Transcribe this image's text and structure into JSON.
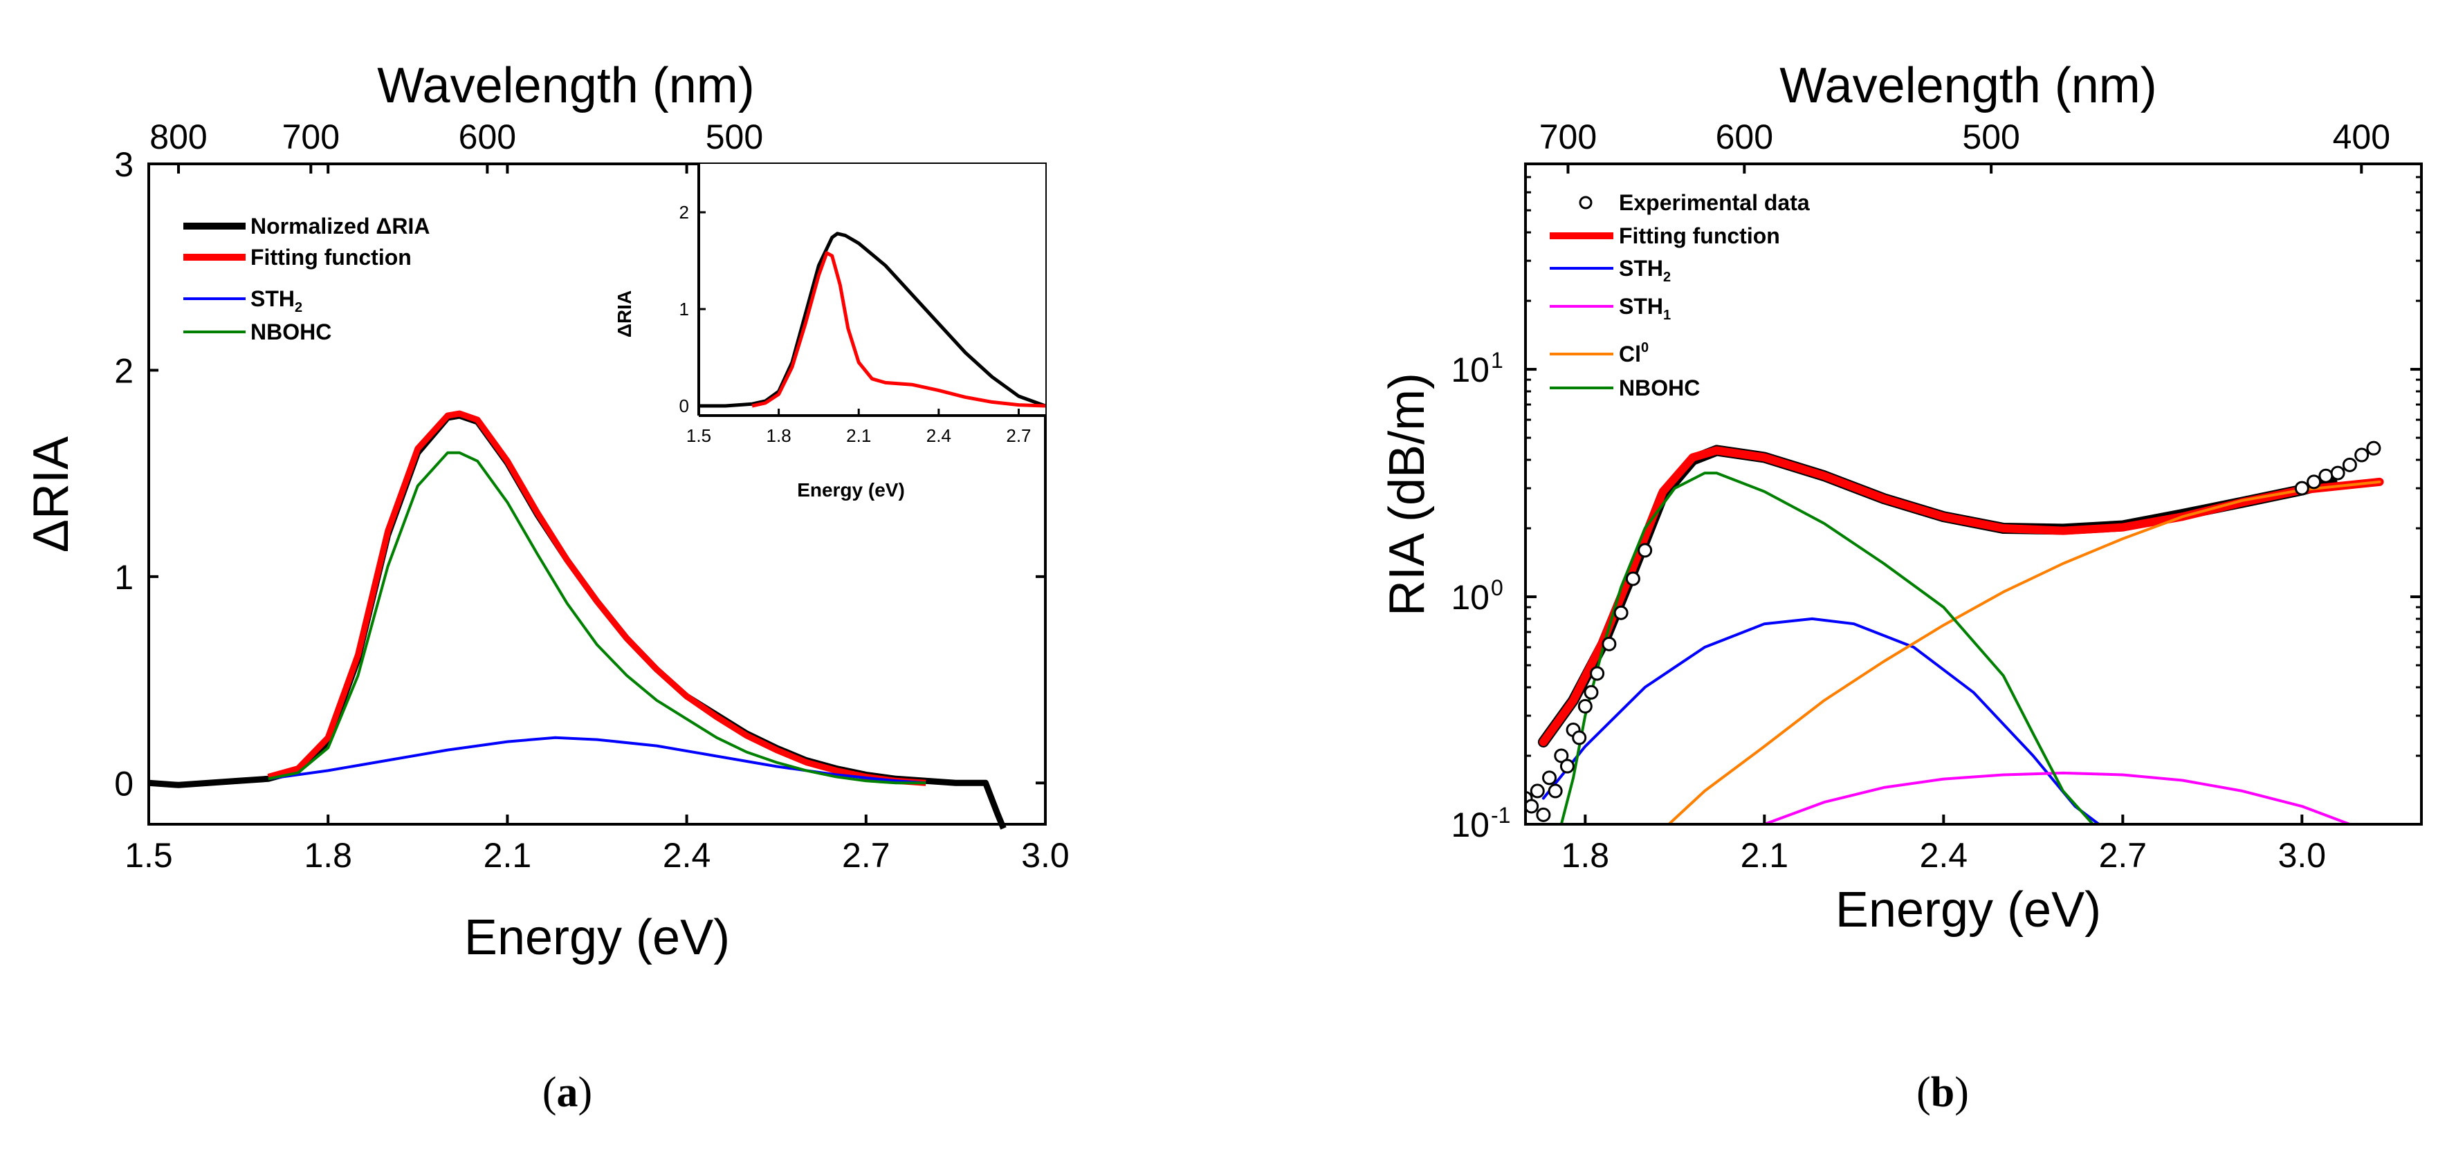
{
  "colors": {
    "normalized": "#000000",
    "fit": "#ff0000",
    "sth2": "#0000ff",
    "sth1": "#ff00ff",
    "cl0": "#ff8000",
    "nbohc": "#008000",
    "exp": "#000000"
  },
  "chart_data": [
    {
      "id": "a",
      "type": "line",
      "panel_label": "a",
      "xlabel": "Energy (eV)",
      "ylabel": "ΔRIA",
      "top_xlabel": "Wavelength (nm)",
      "xlim": [
        1.5,
        3.0
      ],
      "ylim": [
        -0.2,
        3.0
      ],
      "xticks": [
        1.5,
        1.8,
        2.1,
        2.4,
        2.7,
        3.0
      ],
      "xtick_labels": [
        "1.5",
        "1.8",
        "2.1",
        "2.4",
        "2.7",
        "3.0"
      ],
      "yticks": [
        0,
        1,
        2,
        3
      ],
      "ytick_labels": [
        "0",
        "1",
        "2",
        "3"
      ],
      "top_ticks_nm": [
        800,
        700,
        600,
        500
      ],
      "top_tick_labels": [
        "800",
        "700",
        "600",
        "500"
      ],
      "legend_position": "top-left",
      "legend": [
        {
          "label": "Normalized ΔRIA",
          "color": "#000000"
        },
        {
          "label": "Fitting function",
          "color": "#ff0000"
        },
        {
          "label": "STH",
          "sub": "2",
          "color": "#0000ff"
        },
        {
          "label": "NBOHC",
          "color": "#008000"
        }
      ],
      "series": [
        {
          "name": "Normalized ΔRIA",
          "color": "#000000",
          "x": [
            1.5,
            1.55,
            1.6,
            1.65,
            1.7,
            1.75,
            1.8,
            1.85,
            1.9,
            1.95,
            2.0,
            2.02,
            2.05,
            2.1,
            2.15,
            2.2,
            2.25,
            2.3,
            2.35,
            2.4,
            2.45,
            2.5,
            2.55,
            2.6,
            2.65,
            2.7,
            2.75,
            2.8,
            2.85,
            2.88,
            2.9,
            2.92,
            2.93
          ],
          "y": [
            0.0,
            -0.01,
            0.0,
            0.01,
            0.02,
            0.06,
            0.2,
            0.6,
            1.2,
            1.6,
            1.77,
            1.78,
            1.75,
            1.55,
            1.3,
            1.08,
            0.88,
            0.7,
            0.55,
            0.42,
            0.33,
            0.24,
            0.17,
            0.11,
            0.07,
            0.04,
            0.02,
            0.01,
            0.0,
            0.0,
            0.0,
            -0.15,
            -0.22
          ]
        },
        {
          "name": "Fitting function",
          "color": "#ff0000",
          "x": [
            1.7,
            1.75,
            1.8,
            1.85,
            1.9,
            1.95,
            2.0,
            2.02,
            2.05,
            2.1,
            2.15,
            2.2,
            2.25,
            2.3,
            2.35,
            2.4,
            2.45,
            2.5,
            2.55,
            2.6,
            2.65,
            2.7,
            2.75,
            2.8
          ],
          "y": [
            0.03,
            0.07,
            0.22,
            0.62,
            1.22,
            1.62,
            1.78,
            1.79,
            1.76,
            1.56,
            1.31,
            1.08,
            0.88,
            0.7,
            0.55,
            0.42,
            0.32,
            0.23,
            0.16,
            0.1,
            0.06,
            0.03,
            0.01,
            0.0
          ]
        },
        {
          "name": "STH2",
          "color": "#0000ff",
          "x": [
            1.7,
            1.8,
            1.9,
            2.0,
            2.1,
            2.18,
            2.25,
            2.35,
            2.45,
            2.55,
            2.65,
            2.75,
            2.8
          ],
          "y": [
            0.02,
            0.06,
            0.11,
            0.16,
            0.2,
            0.22,
            0.21,
            0.18,
            0.13,
            0.08,
            0.04,
            0.01,
            0.0
          ]
        },
        {
          "name": "NBOHC",
          "color": "#008000",
          "x": [
            1.7,
            1.75,
            1.8,
            1.85,
            1.9,
            1.95,
            2.0,
            2.02,
            2.05,
            2.1,
            2.15,
            2.2,
            2.25,
            2.3,
            2.35,
            2.4,
            2.45,
            2.5,
            2.55,
            2.6,
            2.65,
            2.7,
            2.75,
            2.8
          ],
          "y": [
            0.02,
            0.05,
            0.17,
            0.52,
            1.05,
            1.44,
            1.6,
            1.6,
            1.56,
            1.36,
            1.11,
            0.87,
            0.67,
            0.52,
            0.4,
            0.31,
            0.22,
            0.15,
            0.1,
            0.06,
            0.03,
            0.01,
            0.0,
            0.0
          ]
        }
      ],
      "inset": {
        "xlabel": "Energy (eV)",
        "ylabel": "ΔRIA",
        "xlim": [
          1.5,
          2.8
        ],
        "ylim": [
          -0.1,
          2.5
        ],
        "xticks": [
          1.5,
          1.8,
          2.1,
          2.4,
          2.7
        ],
        "xtick_labels": [
          "1.5",
          "1.8",
          "2.1",
          "2.4",
          "2.7"
        ],
        "yticks": [
          0,
          1,
          2
        ],
        "ytick_labels": [
          "0",
          "1",
          "2"
        ],
        "series": [
          {
            "name": "black",
            "color": "#000000",
            "x": [
              1.5,
              1.6,
              1.7,
              1.75,
              1.8,
              1.85,
              1.9,
              1.95,
              2.0,
              2.02,
              2.05,
              2.1,
              2.2,
              2.3,
              2.4,
              2.5,
              2.6,
              2.7,
              2.8
            ],
            "y": [
              0.0,
              0.0,
              0.02,
              0.05,
              0.15,
              0.45,
              0.95,
              1.45,
              1.74,
              1.78,
              1.76,
              1.68,
              1.45,
              1.15,
              0.85,
              0.55,
              0.3,
              0.1,
              0.0
            ]
          },
          {
            "name": "red",
            "color": "#ff0000",
            "x": [
              1.7,
              1.75,
              1.8,
              1.85,
              1.9,
              1.95,
              1.98,
              2.0,
              2.03,
              2.06,
              2.1,
              2.15,
              2.2,
              2.3,
              2.4,
              2.5,
              2.6,
              2.7,
              2.8
            ],
            "y": [
              0.0,
              0.03,
              0.12,
              0.4,
              0.85,
              1.35,
              1.58,
              1.55,
              1.25,
              0.8,
              0.45,
              0.28,
              0.24,
              0.22,
              0.16,
              0.09,
              0.04,
              0.01,
              0.0
            ]
          }
        ]
      }
    },
    {
      "id": "b",
      "type": "line",
      "panel_label": "b",
      "xlabel": "Energy (eV)",
      "ylabel": "RIA (dB/m)",
      "top_xlabel": "Wavelength (nm)",
      "yscale": "log",
      "xlim": [
        1.7,
        3.2
      ],
      "ylim": [
        0.1,
        80
      ],
      "xticks": [
        1.8,
        2.1,
        2.4,
        2.7,
        3.0
      ],
      "xtick_labels": [
        "1.8",
        "2.1",
        "2.4",
        "2.7",
        "3.0"
      ],
      "yticks": [
        0.1,
        1,
        10
      ],
      "ytick_base": "10",
      "ytick_exponents": [
        "-1",
        "0",
        "1"
      ],
      "top_ticks_nm": [
        700,
        600,
        500,
        400
      ],
      "top_tick_labels": [
        "700",
        "600",
        "500",
        "400"
      ],
      "legend_position": "top-left",
      "legend": [
        {
          "label": "Experimental data",
          "color": "#000000",
          "marker": "circle"
        },
        {
          "label": "Fitting function",
          "color": "#ff0000"
        },
        {
          "label": "STH",
          "sub": "2",
          "color": "#0000ff"
        },
        {
          "label": "STH",
          "sub": "1",
          "color": "#ff00ff"
        },
        {
          "label": "Cl",
          "sup": "0",
          "color": "#ff8000"
        },
        {
          "label": "NBOHC",
          "color": "#008000"
        }
      ],
      "series": [
        {
          "name": "Experimental data",
          "color": "#000000",
          "marker": "circle",
          "x": [
            1.7,
            1.71,
            1.72,
            1.73,
            1.74,
            1.75,
            1.76,
            1.77,
            1.78,
            1.79,
            1.8,
            1.81,
            1.82,
            1.84,
            1.86,
            1.88,
            1.9,
            3.0,
            3.02,
            3.04,
            3.06,
            3.08,
            3.1,
            3.12
          ],
          "y": [
            0.13,
            0.12,
            0.14,
            0.11,
            0.16,
            0.14,
            0.2,
            0.18,
            0.26,
            0.24,
            0.33,
            0.38,
            0.46,
            0.62,
            0.85,
            1.2,
            1.6,
            3.0,
            3.2,
            3.4,
            3.5,
            3.8,
            4.2,
            4.5
          ]
        },
        {
          "name": "Experimental data (dense)",
          "color": "#000000",
          "x": [
            1.73,
            1.78,
            1.83,
            1.88,
            1.93,
            1.98,
            2.02,
            2.1,
            2.2,
            2.3,
            2.4,
            2.5,
            2.6,
            2.7,
            2.8,
            2.9,
            3.0,
            3.05
          ],
          "y": [
            0.23,
            0.35,
            0.62,
            1.3,
            2.8,
            4.0,
            4.4,
            4.1,
            3.4,
            2.7,
            2.25,
            2.0,
            1.98,
            2.05,
            2.3,
            2.6,
            2.95,
            3.2
          ]
        },
        {
          "name": "Fitting function",
          "color": "#ff0000",
          "x": [
            1.73,
            1.78,
            1.83,
            1.88,
            1.93,
            1.98,
            2.02,
            2.1,
            2.2,
            2.3,
            2.4,
            2.5,
            2.6,
            2.7,
            2.8,
            2.9,
            3.0,
            3.13
          ],
          "y": [
            0.23,
            0.35,
            0.64,
            1.35,
            2.9,
            4.1,
            4.4,
            4.1,
            3.4,
            2.7,
            2.25,
            2.0,
            1.95,
            2.02,
            2.25,
            2.6,
            2.95,
            3.2
          ]
        },
        {
          "name": "STH2",
          "color": "#0000ff",
          "x": [
            1.73,
            1.8,
            1.9,
            2.0,
            2.1,
            2.18,
            2.25,
            2.35,
            2.45,
            2.55,
            2.62,
            2.66
          ],
          "y": [
            0.13,
            0.22,
            0.4,
            0.6,
            0.76,
            0.8,
            0.76,
            0.6,
            0.38,
            0.2,
            0.12,
            0.1
          ]
        },
        {
          "name": "STH1",
          "color": "#ff00ff",
          "x": [
            2.1,
            2.2,
            2.3,
            2.4,
            2.5,
            2.6,
            2.7,
            2.8,
            2.9,
            3.0,
            3.08
          ],
          "y": [
            0.1,
            0.125,
            0.145,
            0.158,
            0.165,
            0.168,
            0.165,
            0.156,
            0.14,
            0.12,
            0.1
          ]
        },
        {
          "name": "Cl0",
          "color": "#ff8000",
          "x": [
            1.94,
            2.0,
            2.1,
            2.2,
            2.3,
            2.4,
            2.5,
            2.6,
            2.7,
            2.8,
            2.9,
            3.0,
            3.13
          ],
          "y": [
            0.1,
            0.14,
            0.22,
            0.35,
            0.52,
            0.75,
            1.05,
            1.4,
            1.8,
            2.25,
            2.65,
            2.95,
            3.2
          ]
        },
        {
          "name": "NBOHC",
          "color": "#008000",
          "x": [
            1.76,
            1.78,
            1.8,
            1.83,
            1.86,
            1.9,
            1.95,
            2.0,
            2.02,
            2.1,
            2.2,
            2.3,
            2.4,
            2.5,
            2.55,
            2.6,
            2.65
          ],
          "y": [
            0.1,
            0.16,
            0.3,
            0.6,
            1.1,
            2.0,
            3.0,
            3.5,
            3.5,
            2.9,
            2.1,
            1.4,
            0.9,
            0.45,
            0.25,
            0.14,
            0.1
          ]
        }
      ]
    }
  ]
}
